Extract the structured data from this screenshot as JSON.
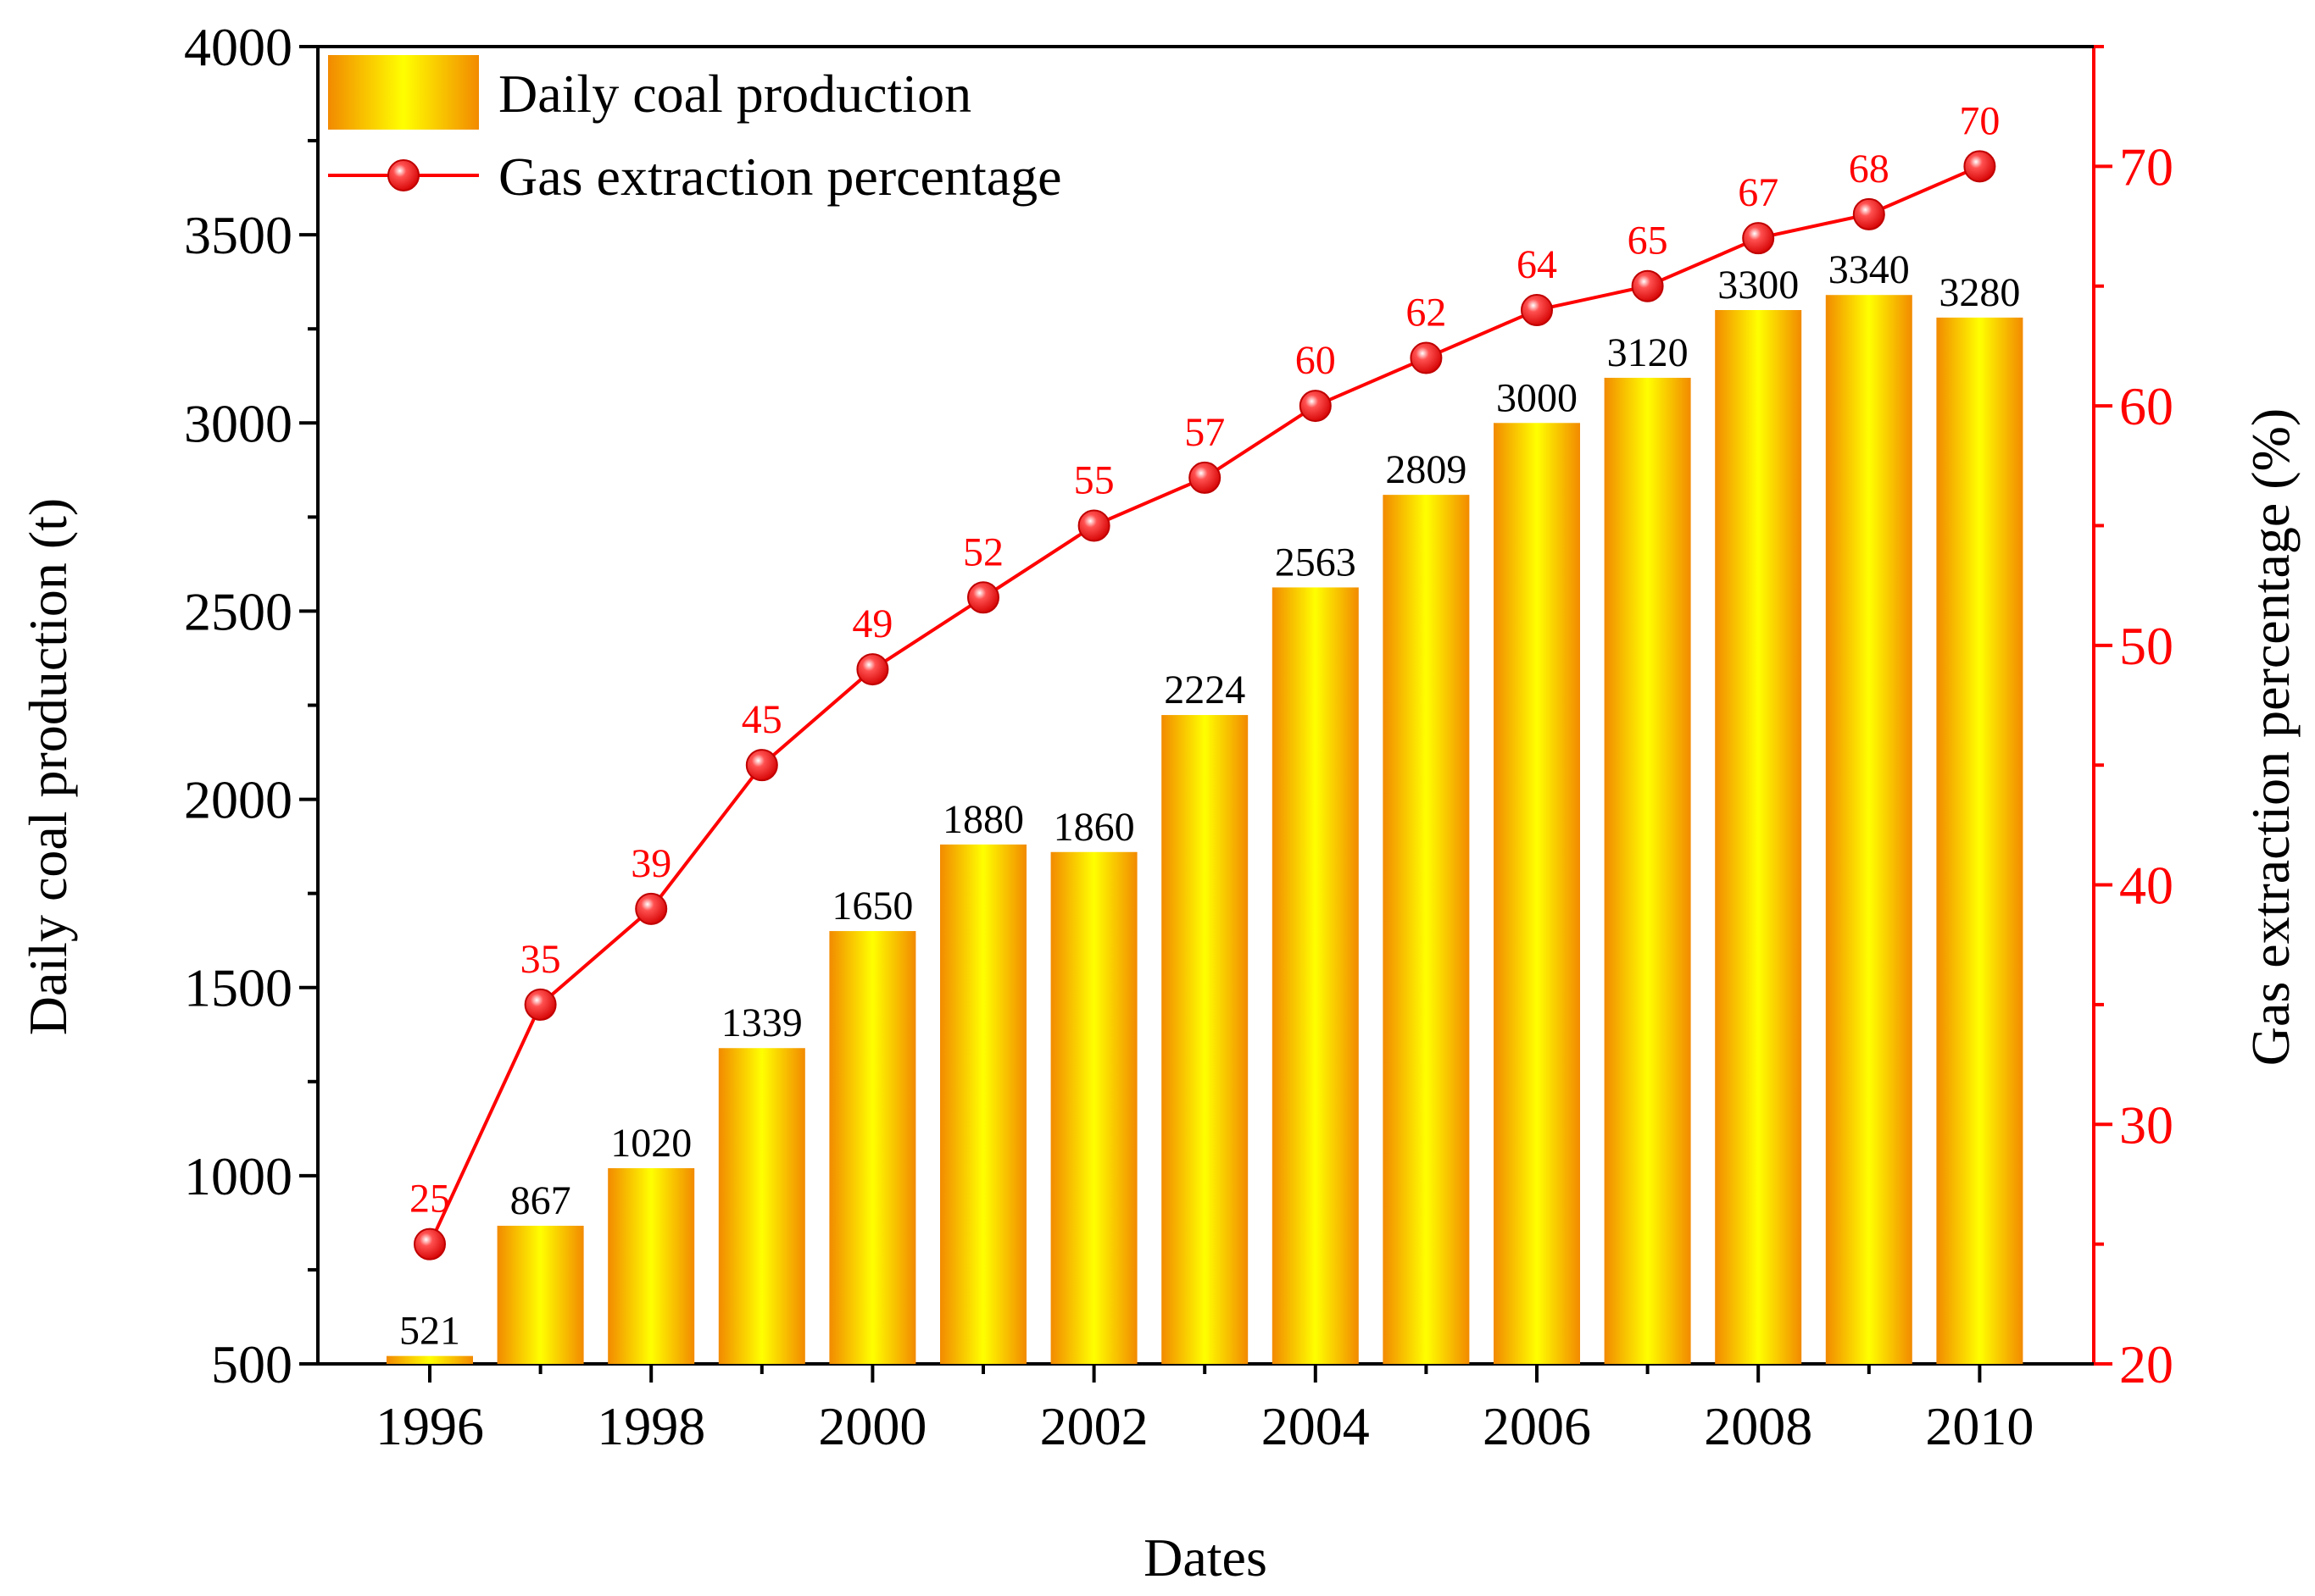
{
  "chart_data": {
    "type": "bar+line",
    "xlabel": "Dates",
    "ylabel_left": "Daily coal production (t)",
    "ylabel_right": "Gas extraction percentage (%)",
    "categories": [
      "1996",
      "1997",
      "1998",
      "1999",
      "2000",
      "2001",
      "2002",
      "2003",
      "2004",
      "2005",
      "2006",
      "2007",
      "2008",
      "2009",
      "2010"
    ],
    "x_tick_labels": [
      "1996",
      "1998",
      "2000",
      "2002",
      "2004",
      "2006",
      "2008",
      "2010"
    ],
    "ylim_left": [
      500,
      4000
    ],
    "yticks_left": [
      500,
      1000,
      1500,
      2000,
      2500,
      3000,
      3500,
      4000
    ],
    "ylim_right": [
      20,
      75
    ],
    "yticks_right": [
      20,
      30,
      40,
      50,
      60,
      70
    ],
    "series": [
      {
        "name": "Daily coal production",
        "kind": "bar",
        "axis": "left",
        "values": [
          521,
          867,
          1020,
          1339,
          1650,
          1880,
          1860,
          2224,
          2563,
          2809,
          3000,
          3120,
          3300,
          3340,
          3280
        ]
      },
      {
        "name": "Gas extraction percentage",
        "kind": "line",
        "axis": "right",
        "values": [
          25,
          35,
          39,
          45,
          49,
          52,
          55,
          57,
          60,
          62,
          64,
          65,
          67,
          68,
          70
        ]
      }
    ],
    "legend": {
      "position": "top-left",
      "bar_label": "Daily coal production",
      "line_label": "Gas extraction percentage"
    },
    "colors": {
      "bar_edge": "#f28a00",
      "bar_center": "#ffff00",
      "line": "#ff0000",
      "right_axis": "#ff0000",
      "left_axis": "#000000"
    }
  }
}
